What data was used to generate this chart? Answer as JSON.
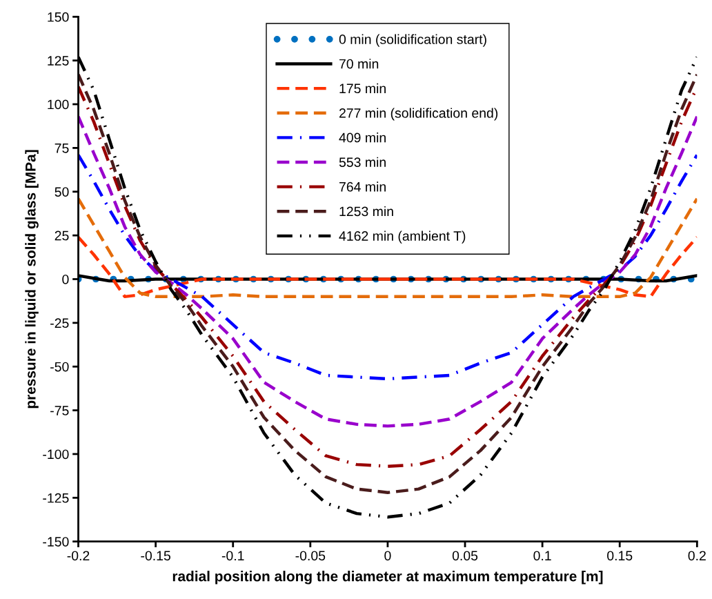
{
  "chart_data": {
    "type": "line",
    "xlabel": "radial position along the diameter at maximum temperature [m]",
    "ylabel": "pressure in liquid or solid glass [MPa]",
    "x": [
      -0.2,
      -0.19,
      -0.18,
      -0.17,
      -0.16,
      -0.15,
      -0.14,
      -0.13,
      -0.12,
      -0.1,
      -0.08,
      -0.06,
      -0.04,
      -0.02,
      0,
      0.02,
      0.04,
      0.06,
      0.08,
      0.1,
      0.12,
      0.13,
      0.14,
      0.15,
      0.16,
      0.17,
      0.18,
      0.19,
      0.2
    ],
    "series": [
      {
        "name": "0 min (solidification start)",
        "color": "#0070c0",
        "line_style": "dotted",
        "values": [
          0,
          0,
          0,
          0,
          0,
          0,
          0,
          0,
          0,
          0,
          0,
          0,
          0,
          0,
          0,
          0,
          0,
          0,
          0,
          0,
          0,
          0,
          0,
          0,
          0,
          0,
          0,
          0,
          0
        ]
      },
      {
        "name": "70 min",
        "color": "#000000",
        "line_style": "solid",
        "values": [
          2,
          0.5,
          -1,
          -1,
          -0.5,
          0,
          0,
          0,
          0,
          0,
          0,
          0,
          0,
          0,
          0,
          0,
          0,
          0,
          0,
          0,
          0,
          0,
          0,
          0,
          -0.5,
          -1,
          -1,
          0.5,
          2
        ]
      },
      {
        "name": "175 min",
        "color": "#ff3300",
        "line_style": "dashed",
        "values": [
          24,
          14,
          3,
          -10,
          -9,
          -6,
          -4,
          -2,
          0,
          0,
          0,
          0,
          0,
          0,
          0,
          0,
          0,
          0,
          0,
          0,
          0,
          -2,
          -4,
          -6,
          -9,
          -10,
          3,
          14,
          24
        ]
      },
      {
        "name": "277 min (solidification end)",
        "color": "#e46c0a",
        "line_style": "dashed",
        "values": [
          46,
          31,
          16,
          1,
          -8,
          -10,
          -10,
          -10,
          -10,
          -9,
          -10,
          -10,
          -10,
          -10,
          -10,
          -10,
          -10,
          -10,
          -10,
          -9,
          -10,
          -10,
          -10,
          -10,
          -8,
          1,
          16,
          31,
          46
        ]
      },
      {
        "name": "409 min",
        "color": "#0000ff",
        "line_style": "dashdot",
        "values": [
          71,
          56,
          40,
          25,
          13,
          5,
          0,
          -5,
          -10,
          -26,
          -42,
          -48,
          -55,
          -56,
          -57,
          -56,
          -55,
          -48,
          -42,
          -26,
          -10,
          -5,
          0,
          5,
          13,
          25,
          40,
          56,
          71
        ]
      },
      {
        "name": "553 min",
        "color": "#9900cc",
        "line_style": "dashed",
        "values": [
          93,
          72,
          52,
          30,
          14,
          4,
          -2,
          -9,
          -17,
          -34,
          -59,
          -70,
          -80,
          -83,
          -84,
          -83,
          -80,
          -70,
          -59,
          -34,
          -17,
          -9,
          -2,
          4,
          14,
          30,
          52,
          72,
          93
        ]
      },
      {
        "name": "764 min",
        "color": "#990000",
        "line_style": "dashdot",
        "values": [
          110,
          90,
          66,
          42,
          22,
          7,
          -3,
          -12,
          -22,
          -44,
          -70,
          -86,
          -101,
          -106,
          -107,
          -106,
          -101,
          -86,
          -70,
          -44,
          -22,
          -12,
          -3,
          7,
          22,
          42,
          66,
          90,
          110
        ]
      },
      {
        "name": "1253 min",
        "color": "#4a1c1c",
        "line_style": "dashed",
        "values": [
          117,
          97,
          72,
          45,
          24,
          8,
          -4,
          -14,
          -27,
          -50,
          -79,
          -98,
          -113,
          -120,
          -122,
          -120,
          -113,
          -98,
          -79,
          -50,
          -27,
          -14,
          -4,
          8,
          24,
          45,
          72,
          97,
          117
        ]
      },
      {
        "name": "4162 min (ambient T)",
        "color": "#000000",
        "line_style": "dashdotdot",
        "values": [
          127,
          108,
          80,
          52,
          28,
          10,
          -6,
          -18,
          -32,
          -56,
          -88,
          -112,
          -128,
          -134,
          -136,
          -134,
          -128,
          -112,
          -88,
          -56,
          -32,
          -18,
          -6,
          10,
          28,
          52,
          80,
          108,
          127
        ]
      }
    ],
    "xlim": [
      -0.2,
      0.2
    ],
    "xticks": [
      -0.2,
      -0.15,
      -0.1,
      -0.05,
      0,
      0.05,
      0.1,
      0.15,
      0.2
    ],
    "ylim": [
      -150,
      150
    ],
    "yticks": [
      -150,
      -125,
      -100,
      -75,
      -50,
      -25,
      0,
      25,
      50,
      75,
      100,
      125,
      150
    ],
    "grid": false,
    "legend": "top"
  }
}
